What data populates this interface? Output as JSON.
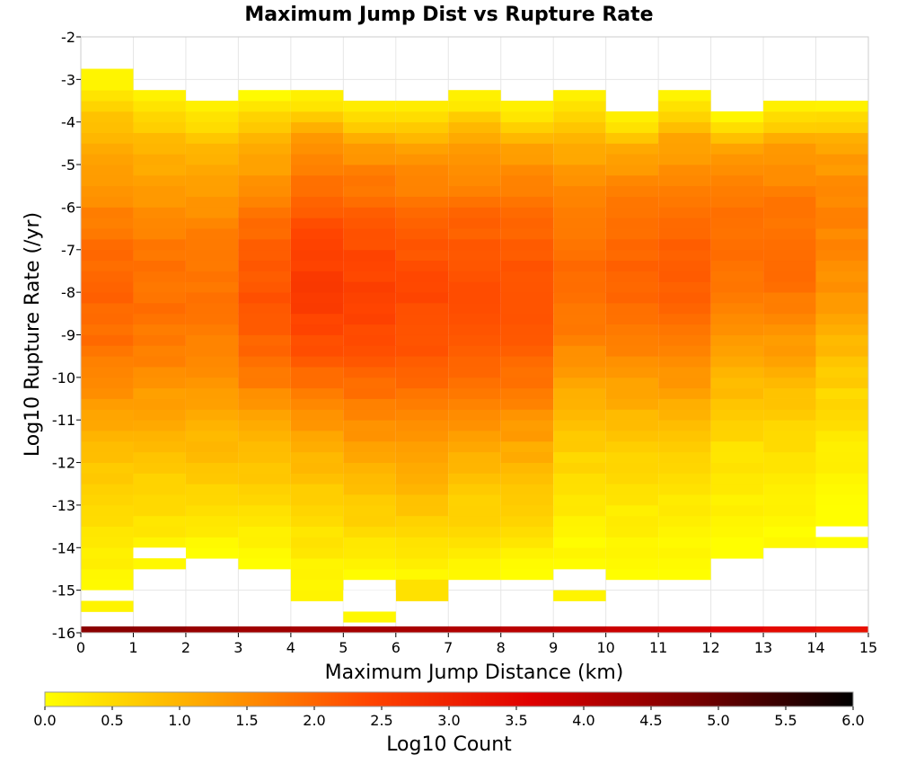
{
  "chart_data": {
    "type": "heatmap",
    "title": "Maximum Jump Dist vs Rupture Rate",
    "xlabel": "Maximum Jump Distance (km)",
    "ylabel": "Log10 Rupture Rate (/yr)",
    "xlim": [
      0,
      15
    ],
    "ylim": [
      -16,
      -2
    ],
    "x_ticks": [
      "0",
      "1",
      "2",
      "3",
      "4",
      "5",
      "6",
      "7",
      "8",
      "9",
      "10",
      "11",
      "12",
      "13",
      "14",
      "15"
    ],
    "y_ticks": [
      "-2",
      "-3",
      "-4",
      "-5",
      "-6",
      "-7",
      "-8",
      "-9",
      "-10",
      "-11",
      "-12",
      "-13",
      "-14",
      "-15",
      "-16"
    ],
    "x_bin_width": 1,
    "y_bin_height": 0.25,
    "colorbar": {
      "label": "Log10 Count",
      "range": [
        0,
        6
      ],
      "ticks": [
        "0.0",
        "0.5",
        "1.0",
        "1.5",
        "2.0",
        "2.5",
        "3.0",
        "3.5",
        "4.0",
        "4.5",
        "5.0",
        "5.5",
        "6.0"
      ],
      "colors": [
        "#ffff00",
        "#ffa500",
        "#ff4500",
        "#e00000",
        "#7a0000",
        "#000000"
      ]
    },
    "grid": true,
    "columns": [
      {
        "x": 0,
        "ymin": -15.5,
        "ymax": -2.75,
        "peak_y": -8.0,
        "peak": 2.0,
        "width": 4.0
      },
      {
        "x": 1,
        "ymin": -14.5,
        "ymax": -3.25,
        "peak_y": -8.0,
        "peak": 1.85,
        "width": 4.0
      },
      {
        "x": 2,
        "ymin": -14.25,
        "ymax": -3.5,
        "peak_y": -8.0,
        "peak": 1.8,
        "width": 4.2
      },
      {
        "x": 3,
        "ymin": -14.5,
        "ymax": -3.25,
        "peak_y": -8.0,
        "peak": 2.2,
        "width": 3.8
      },
      {
        "x": 4,
        "ymin": -15.0,
        "ymax": -3.25,
        "peak_y": -7.8,
        "peak": 2.55,
        "width": 4.0
      },
      {
        "x": 5,
        "ymin": -14.75,
        "ymax": -3.5,
        "peak_y": -8.0,
        "peak": 2.45,
        "width": 4.2
      },
      {
        "x": 6,
        "ymin": -14.75,
        "ymax": -3.5,
        "peak_y": -8.2,
        "peak": 2.35,
        "width": 4.3
      },
      {
        "x": 7,
        "ymin": -14.75,
        "ymax": -3.25,
        "peak_y": -8.0,
        "peak": 2.3,
        "width": 4.2
      },
      {
        "x": 8,
        "ymin": -14.75,
        "ymax": -3.5,
        "peak_y": -8.0,
        "peak": 2.25,
        "width": 4.2
      },
      {
        "x": 9,
        "ymin": -14.5,
        "ymax": -3.25,
        "peak_y": -7.5,
        "peak": 1.9,
        "width": 3.8
      },
      {
        "x": 10,
        "ymin": -14.75,
        "ymax": -3.75,
        "peak_y": -7.5,
        "peak": 2.0,
        "width": 3.8
      },
      {
        "x": 11,
        "ymin": -14.75,
        "ymax": -3.25,
        "peak_y": -7.5,
        "peak": 2.1,
        "width": 3.8
      },
      {
        "x": 12,
        "ymin": -14.25,
        "ymax": -3.75,
        "peak_y": -7.0,
        "peak": 1.9,
        "width": 3.6
      },
      {
        "x": 13,
        "ymin": -14.0,
        "ymax": -3.5,
        "peak_y": -7.0,
        "peak": 1.9,
        "width": 3.6
      },
      {
        "x": 14,
        "ymin": -14.0,
        "ymax": -3.5,
        "peak_y": -6.5,
        "peak": 1.6,
        "width": 3.6
      }
    ],
    "extra_cells": [
      {
        "x": 0,
        "y0": -15.5,
        "y1": -15.25,
        "value": 0.15
      },
      {
        "x": 4,
        "y0": -15.25,
        "y1": -15.0,
        "value": 0.15
      },
      {
        "x": 5,
        "y0": -15.75,
        "y1": -15.5,
        "value": 0.1
      },
      {
        "x": 6,
        "y0": -15.25,
        "y1": -14.75,
        "value": 0.4
      },
      {
        "x": 9,
        "y0": -15.25,
        "y1": -15.0,
        "value": 0.15
      }
    ],
    "gap_cells": [
      {
        "x": 0,
        "y0": -15.25,
        "y1": -15.0
      },
      {
        "x": 5,
        "y0": -15.5,
        "y1": -15.0
      },
      {
        "x": 14,
        "y0": -13.75,
        "y1": -13.5
      },
      {
        "x": 1,
        "y0": -14.25,
        "y1": -14.0
      }
    ],
    "bottom_row": {
      "y0": -16.0,
      "y1": -15.85,
      "values": [
        4.6,
        4.55,
        4.45,
        4.35,
        4.3,
        4.3,
        4.25,
        4.15,
        4.05,
        3.95,
        3.85,
        3.75,
        3.6,
        3.45,
        3.3
      ]
    }
  }
}
